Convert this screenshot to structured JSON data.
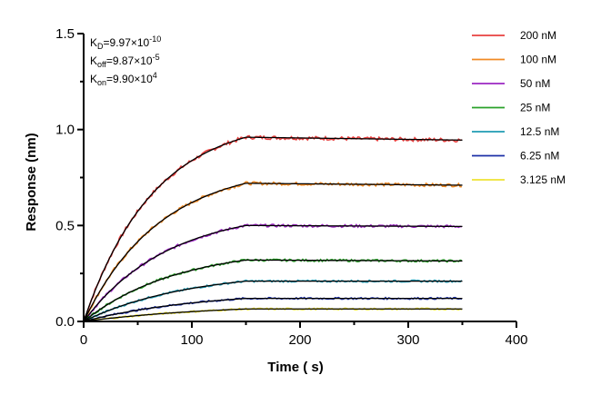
{
  "chart_data": {
    "type": "line",
    "title": "",
    "xlabel": "Time ( s)",
    "ylabel": "Response (nm)",
    "xlim": [
      0,
      400
    ],
    "ylim": [
      0,
      1.5
    ],
    "x_ticks": [
      0,
      100,
      200,
      300,
      400
    ],
    "x_tick_labels": [
      "0",
      "100",
      "200",
      "300",
      "400"
    ],
    "y_ticks": [
      0.0,
      0.5,
      1.0,
      1.5
    ],
    "y_tick_labels": [
      "0.0",
      "0.5",
      "1.0",
      "1.5"
    ],
    "association_end": 150,
    "dissociation_end": 350,
    "grid": false,
    "legend_position": "top-right",
    "fit_color": "#000000",
    "annotations": {
      "kd": {
        "label": "K",
        "sub": "D",
        "value": "=9.97×10",
        "exp": "-10"
      },
      "koff": {
        "label": "K",
        "sub": "off",
        "value": "=9.87×10",
        "exp": "-5"
      },
      "kon": {
        "label": "K",
        "sub": "on",
        "value": "=9.90×10",
        "exp": "4"
      }
    },
    "series": [
      {
        "name": "200 nM",
        "color": "#e8403f",
        "plateau_end_assoc": 0.96,
        "end_value": 0.945
      },
      {
        "name": "100 nM",
        "color": "#f08a24",
        "plateau_end_assoc": 0.72,
        "end_value": 0.71
      },
      {
        "name": "50 nM",
        "color": "#9b27c2",
        "plateau_end_assoc": 0.5,
        "end_value": 0.495
      },
      {
        "name": "25 nM",
        "color": "#2aa12a",
        "plateau_end_assoc": 0.32,
        "end_value": 0.315
      },
      {
        "name": "12.5 nM",
        "color": "#1f9bb3",
        "plateau_end_assoc": 0.21,
        "end_value": 0.21
      },
      {
        "name": "6.25 nM",
        "color": "#1c2fa6",
        "plateau_end_assoc": 0.12,
        "end_value": 0.12
      },
      {
        "name": "3.125 nM",
        "color": "#eee233",
        "plateau_end_assoc": 0.065,
        "end_value": 0.065
      }
    ]
  }
}
